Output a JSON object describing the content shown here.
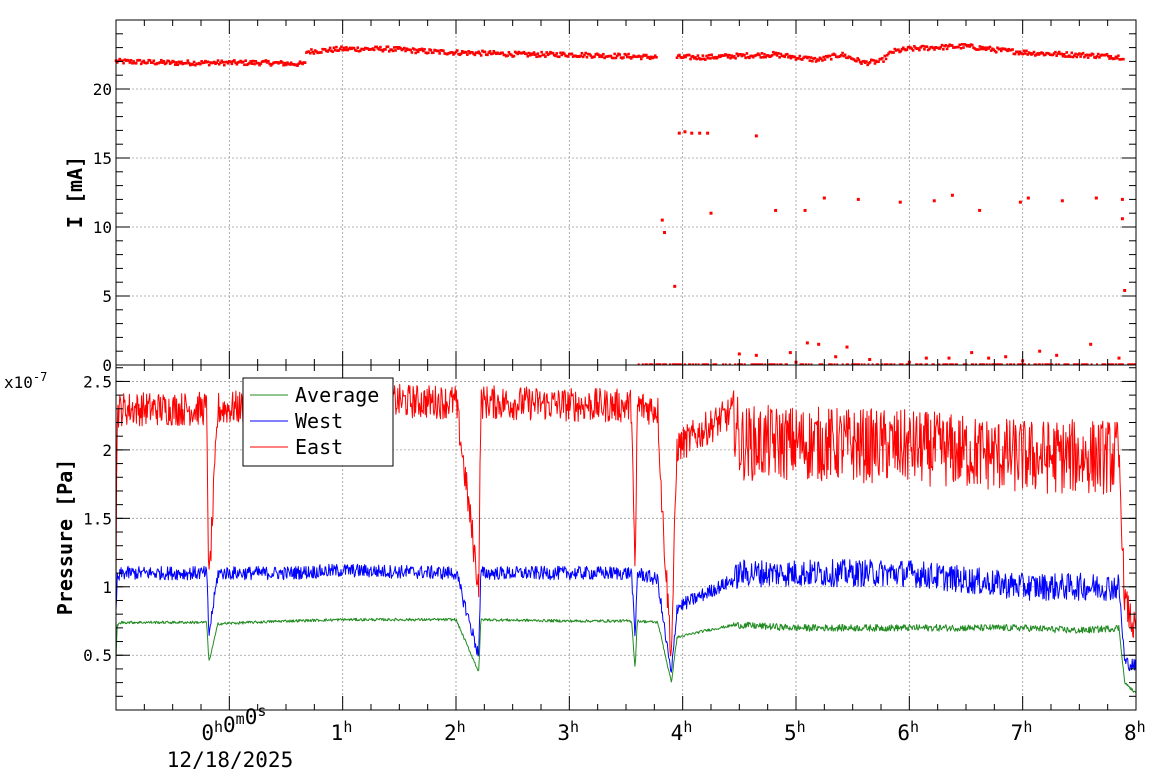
{
  "chart_data": [
    {
      "type": "scatter",
      "panel": "current",
      "ylabel": "I [mA]",
      "ylim": [
        0,
        25
      ],
      "yticks": [
        0,
        5,
        10,
        15,
        20
      ],
      "ytick_labels": [
        "0",
        "5",
        "10",
        "15",
        "20"
      ],
      "grid": true,
      "series": [
        {
          "color": "#ff0000",
          "segments": [
            {
              "x_h": [
                -1.0,
                -0.5,
                0.0,
                0.3,
                0.68
              ],
              "y": [
                22.0,
                21.9,
                21.9,
                21.9,
                21.8
              ]
            },
            {
              "x_h": [
                0.68,
                1.0,
                1.4,
                1.8,
                2.2,
                2.6,
                3.0,
                3.4,
                3.78
              ],
              "y": [
                22.7,
                22.9,
                22.9,
                22.7,
                22.6,
                22.5,
                22.5,
                22.4,
                22.3
              ]
            },
            {
              "x_h": [
                3.95,
                4.2,
                4.5,
                4.8,
                5.0,
                5.2,
                5.4,
                5.6,
                5.75,
                5.85,
                6.0,
                6.2,
                6.5,
                6.8,
                7.1,
                7.4,
                7.7,
                7.9
              ],
              "y": [
                22.3,
                22.3,
                22.4,
                22.5,
                22.3,
                22.1,
                22.5,
                21.9,
                22.0,
                22.7,
                22.9,
                23.0,
                23.1,
                22.8,
                22.6,
                22.5,
                22.4,
                22.3
              ]
            }
          ],
          "outliers": [
            {
              "x_h": 3.82,
              "y": 10.5
            },
            {
              "x_h": 3.84,
              "y": 9.6
            },
            {
              "x_h": 3.93,
              "y": 5.7
            },
            {
              "x_h": 3.97,
              "y": 16.8
            },
            {
              "x_h": 4.02,
              "y": 16.9
            },
            {
              "x_h": 4.08,
              "y": 16.8
            },
            {
              "x_h": 4.15,
              "y": 16.8
            },
            {
              "x_h": 4.22,
              "y": 16.8
            },
            {
              "x_h": 4.25,
              "y": 11.0
            },
            {
              "x_h": 4.65,
              "y": 16.6
            },
            {
              "x_h": 4.82,
              "y": 11.2
            },
            {
              "x_h": 5.08,
              "y": 11.2
            },
            {
              "x_h": 5.25,
              "y": 12.1
            },
            {
              "x_h": 5.55,
              "y": 12.0
            },
            {
              "x_h": 5.92,
              "y": 11.8
            },
            {
              "x_h": 6.22,
              "y": 11.9
            },
            {
              "x_h": 6.38,
              "y": 12.3
            },
            {
              "x_h": 6.62,
              "y": 11.2
            },
            {
              "x_h": 6.98,
              "y": 11.8
            },
            {
              "x_h": 7.05,
              "y": 12.1
            },
            {
              "x_h": 7.35,
              "y": 11.9
            },
            {
              "x_h": 7.65,
              "y": 12.1
            },
            {
              "x_h": 7.88,
              "y": 12.0
            },
            {
              "x_h": 7.88,
              "y": 10.6
            },
            {
              "x_h": 7.9,
              "y": 5.4
            },
            {
              "x_h": 4.5,
              "y": 0.8
            },
            {
              "x_h": 4.65,
              "y": 0.7
            },
            {
              "x_h": 4.95,
              "y": 0.9
            },
            {
              "x_h": 5.1,
              "y": 1.6
            },
            {
              "x_h": 5.2,
              "y": 1.5
            },
            {
              "x_h": 5.35,
              "y": 0.6
            },
            {
              "x_h": 5.45,
              "y": 1.3
            },
            {
              "x_h": 5.65,
              "y": 0.4
            },
            {
              "x_h": 6.15,
              "y": 0.5
            },
            {
              "x_h": 6.35,
              "y": 0.5
            },
            {
              "x_h": 6.55,
              "y": 0.9
            },
            {
              "x_h": 6.7,
              "y": 0.5
            },
            {
              "x_h": 6.85,
              "y": 0.6
            },
            {
              "x_h": 7.15,
              "y": 1.0
            },
            {
              "x_h": 7.3,
              "y": 0.7
            },
            {
              "x_h": 7.6,
              "y": 1.5
            },
            {
              "x_h": 7.85,
              "y": 0.5
            },
            {
              "x_h": 6.0,
              "y": 0.2
            },
            {
              "x_h": 7.0,
              "y": 0.3
            },
            {
              "x_h": 5.0,
              "y": 0.2
            }
          ]
        }
      ]
    },
    {
      "type": "line",
      "panel": "pressure",
      "ylabel": "Pressure [Pa]",
      "y_exponent": "x10",
      "y_exponent_power": "-7",
      "ylim": [
        0.1,
        2.62
      ],
      "yticks": [
        0.5,
        1,
        1.5,
        2,
        2.5
      ],
      "ytick_labels": [
        "0.5",
        "1",
        "1.5",
        "2",
        "2.5"
      ],
      "grid": true,
      "legend_position": "top-left",
      "series": [
        {
          "name": "Average",
          "color": "#228b22",
          "x_h": [
            -1.0,
            -0.99,
            -0.95,
            -0.2,
            -0.18,
            -0.1,
            0.5,
            1.0,
            2.0,
            2.2,
            2.22,
            3.0,
            3.55,
            3.58,
            3.6,
            3.78,
            3.82,
            3.9,
            3.95,
            4.2,
            4.45,
            4.5,
            5.0,
            6.0,
            7.0,
            7.5,
            7.85,
            7.9,
            8.0
          ],
          "y": [
            0.45,
            0.72,
            0.74,
            0.74,
            0.45,
            0.73,
            0.75,
            0.76,
            0.76,
            0.38,
            0.76,
            0.75,
            0.75,
            0.4,
            0.75,
            0.74,
            0.6,
            0.3,
            0.63,
            0.68,
            0.72,
            0.72,
            0.7,
            0.7,
            0.7,
            0.68,
            0.7,
            0.3,
            0.22
          ],
          "noise": 0.02
        },
        {
          "name": "West",
          "color": "#0000ff",
          "x_h": [
            -1.0,
            -0.99,
            -0.95,
            -0.2,
            -0.18,
            -0.1,
            0.5,
            1.0,
            2.0,
            2.2,
            2.22,
            3.0,
            3.55,
            3.58,
            3.6,
            3.78,
            3.82,
            3.9,
            3.95,
            4.2,
            4.45,
            4.5,
            5.0,
            6.0,
            7.0,
            7.5,
            7.85,
            7.9,
            8.0
          ],
          "y": [
            0.8,
            1.05,
            1.1,
            1.1,
            0.65,
            1.1,
            1.1,
            1.12,
            1.1,
            0.5,
            1.1,
            1.1,
            1.1,
            0.6,
            1.1,
            1.05,
            0.8,
            0.35,
            0.85,
            0.95,
            1.05,
            1.1,
            1.1,
            1.1,
            1.0,
            1.0,
            1.0,
            0.45,
            0.42
          ],
          "noise": 0.1
        },
        {
          "name": "East",
          "color": "#ff0000",
          "x_h": [
            -1.0,
            -0.99,
            -0.95,
            -0.2,
            -0.18,
            -0.1,
            0.5,
            1.0,
            2.0,
            2.2,
            2.22,
            3.0,
            3.55,
            3.58,
            3.6,
            3.78,
            3.82,
            3.9,
            3.95,
            4.2,
            4.45,
            4.5,
            5.0,
            6.0,
            7.0,
            7.5,
            7.85,
            7.9,
            8.0
          ],
          "y": [
            1.0,
            2.28,
            2.3,
            2.3,
            1.0,
            2.3,
            2.33,
            2.36,
            2.35,
            1.0,
            2.35,
            2.33,
            2.32,
            1.0,
            2.32,
            2.3,
            1.55,
            0.5,
            2.02,
            2.15,
            2.28,
            2.05,
            2.05,
            2.02,
            1.95,
            1.95,
            1.95,
            0.9,
            0.65
          ],
          "noise": 0.25
        }
      ]
    }
  ],
  "x_axis": {
    "x_range_h": [
      -1.0,
      8.0
    ],
    "tick_labels": [
      {
        "h": 0,
        "text": "0",
        "sup": "h",
        "text2": "0",
        "sup2": "m",
        "text3": "0",
        "sup3": "s"
      },
      {
        "h": 1,
        "text": "1",
        "sup": "h"
      },
      {
        "h": 2,
        "text": "2",
        "sup": "h"
      },
      {
        "h": 3,
        "text": "3",
        "sup": "h"
      },
      {
        "h": 4,
        "text": "4",
        "sup": "h"
      },
      {
        "h": 5,
        "text": "5",
        "sup": "h"
      },
      {
        "h": 6,
        "text": "6",
        "sup": "h"
      },
      {
        "h": 7,
        "text": "7",
        "sup": "h"
      },
      {
        "h": 8,
        "text": "8",
        "sup": "h"
      }
    ],
    "date_label": "12/18/2025"
  },
  "colors": {
    "grid": "#9a9a9a",
    "frame": "#000000"
  }
}
